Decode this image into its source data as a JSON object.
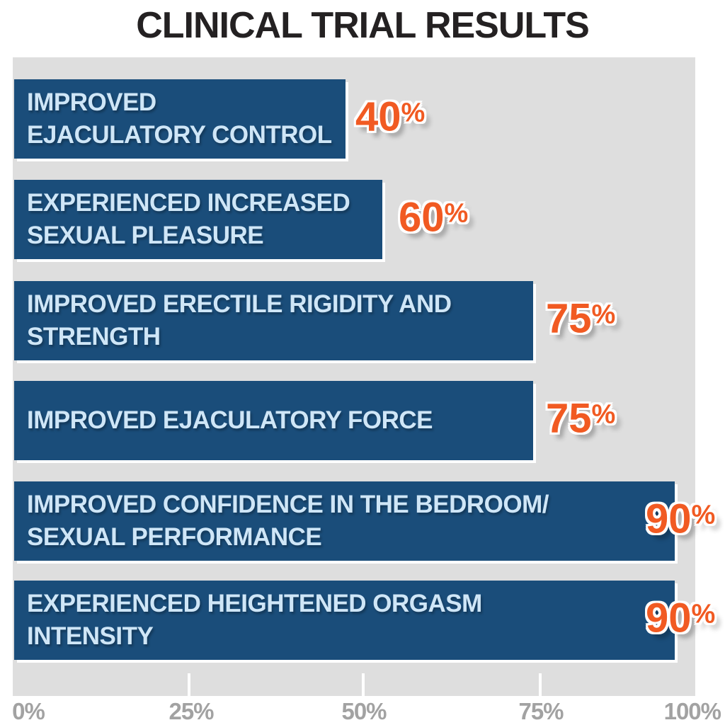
{
  "title": "CLINICAL TRIAL RESULTS",
  "chart_data": {
    "type": "bar",
    "orientation": "horizontal",
    "title": "CLINICAL TRIAL RESULTS",
    "categories": [
      "IMPROVED EJACULATORY CONTROL",
      "EXPERIENCED INCREASED SEXUAL PLEASURE",
      "IMPROVED ERECTILE RIGIDITY AND STRENGTH",
      "IMPROVED EJACULATORY FORCE",
      "IMPROVED CONFIDENCE IN THE BEDROOM/SEXUAL PERFORMANCE",
      "EXPERIENCED HEIGHTENED ORGASM INTENSITY"
    ],
    "values": [
      40,
      60,
      75,
      75,
      90,
      90
    ],
    "value_labels": [
      "40%",
      "60%",
      "75%",
      "75%",
      "90%",
      "90%"
    ],
    "xlabel": "",
    "ylabel": "",
    "xlim": [
      0,
      100
    ],
    "x_ticks": [
      "0%",
      "25%",
      "50%",
      "75%",
      "100%"
    ],
    "grid": false,
    "legend": false
  },
  "bars": [
    {
      "label": "IMPROVED\nEJACULATORY CONTROL",
      "value": "40",
      "suffix": "%"
    },
    {
      "label": "EXPERIENCED INCREASED\nSEXUAL PLEASURE",
      "value": "60",
      "suffix": "%"
    },
    {
      "label": "IMPROVED ERECTILE RIGIDITY AND\nSTRENGTH",
      "value": "75",
      "suffix": "%"
    },
    {
      "label": "IMPROVED EJACULATORY FORCE",
      "value": "75",
      "suffix": "%"
    },
    {
      "label": "IMPROVED CONFIDENCE IN THE BEDROOM/\nSEXUAL PERFORMANCE",
      "value": "90",
      "suffix": "%"
    },
    {
      "label": "EXPERIENCED HEIGHTENED ORGASM\nINTENSITY",
      "value": "90",
      "suffix": "%"
    }
  ],
  "axis": {
    "ticks": [
      "0%",
      "25%",
      "50%",
      "75%",
      "100%"
    ]
  },
  "colors": {
    "bar_fill": "#1a4d7a",
    "bar_text": "#cfe6f7",
    "value_text": "#f15a22",
    "plot_background": "#dedede",
    "axis_text": "#a2a2a2",
    "title_text": "#242122",
    "page_background": "#ffffff"
  }
}
